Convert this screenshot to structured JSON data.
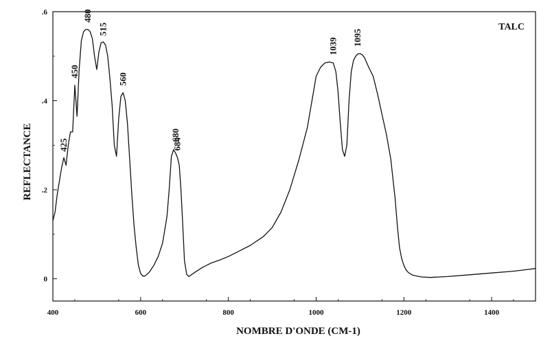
{
  "chart_data": {
    "type": "line",
    "title": "TALC",
    "xlabel": "NOMBRE D'ONDE (CM-1)",
    "ylabel": "REFLECTANCE",
    "xlim": [
      400,
      1500
    ],
    "ylim": [
      -0.05,
      0.6
    ],
    "x_ticks": [
      400,
      600,
      800,
      1000,
      1200,
      1400
    ],
    "x_tick_labels": [
      "400",
      "600",
      "800",
      "1000",
      "1200",
      "1400"
    ],
    "y_ticks": [
      0,
      0.2,
      0.4,
      0.6
    ],
    "y_tick_labels": [
      "0",
      ".2",
      ".4",
      ".6"
    ],
    "grid": false,
    "legend": "none",
    "line_color": "#111111",
    "peak_labels": [
      {
        "x": 425,
        "y": 0.27,
        "text": "425"
      },
      {
        "x": 450,
        "y": 0.435,
        "text": "450"
      },
      {
        "x": 480,
        "y": 0.56,
        "text": "480"
      },
      {
        "x": 515,
        "y": 0.53,
        "text": "515"
      },
      {
        "x": 560,
        "y": 0.418,
        "text": "560"
      },
      {
        "x": 680,
        "y": 0.292,
        "text": "680"
      },
      {
        "x": 684,
        "y": 0.272,
        "text": "684"
      },
      {
        "x": 1039,
        "y": 0.487,
        "text": "1039"
      },
      {
        "x": 1095,
        "y": 0.506,
        "text": "1095"
      }
    ],
    "series": [
      {
        "x": [
          400,
          405,
          410,
          415,
          420,
          425,
          430,
          435,
          440,
          445,
          450,
          455,
          460,
          465,
          470,
          475,
          480,
          485,
          490,
          495,
          500,
          505,
          510,
          515,
          520,
          525,
          530,
          535,
          540,
          545,
          550,
          555,
          560,
          565,
          570,
          575,
          580,
          585,
          590,
          595,
          600,
          605,
          610,
          620,
          630,
          640,
          650,
          660,
          665,
          670,
          675,
          680,
          684,
          688,
          692,
          696,
          700,
          705,
          710,
          720,
          740,
          760,
          780,
          800,
          820,
          850,
          880,
          900,
          920,
          940,
          960,
          980,
          1000,
          1010,
          1020,
          1030,
          1039,
          1045,
          1050,
          1055,
          1060,
          1065,
          1070,
          1075,
          1080,
          1085,
          1090,
          1095,
          1100,
          1105,
          1110,
          1120,
          1130,
          1140,
          1150,
          1160,
          1170,
          1180,
          1185,
          1190,
          1195,
          1200,
          1205,
          1210,
          1220,
          1240,
          1260,
          1280,
          1300,
          1350,
          1400,
          1450,
          1500
        ],
        "y": [
          0.13,
          0.15,
          0.19,
          0.22,
          0.25,
          0.272,
          0.255,
          0.3,
          0.33,
          0.33,
          0.435,
          0.365,
          0.47,
          0.535,
          0.555,
          0.56,
          0.56,
          0.555,
          0.54,
          0.5,
          0.47,
          0.51,
          0.53,
          0.532,
          0.525,
          0.5,
          0.45,
          0.39,
          0.3,
          0.275,
          0.36,
          0.41,
          0.418,
          0.4,
          0.35,
          0.27,
          0.19,
          0.12,
          0.07,
          0.03,
          0.012,
          0.006,
          0.006,
          0.015,
          0.03,
          0.05,
          0.08,
          0.14,
          0.2,
          0.275,
          0.29,
          0.282,
          0.272,
          0.255,
          0.2,
          0.12,
          0.04,
          0.01,
          0.005,
          0.012,
          0.025,
          0.035,
          0.042,
          0.05,
          0.06,
          0.075,
          0.095,
          0.115,
          0.15,
          0.2,
          0.265,
          0.34,
          0.455,
          0.475,
          0.485,
          0.487,
          0.485,
          0.465,
          0.42,
          0.35,
          0.29,
          0.275,
          0.3,
          0.4,
          0.465,
          0.49,
          0.5,
          0.505,
          0.506,
          0.503,
          0.497,
          0.475,
          0.455,
          0.415,
          0.37,
          0.325,
          0.27,
          0.18,
          0.12,
          0.07,
          0.045,
          0.03,
          0.02,
          0.014,
          0.008,
          0.004,
          0.003,
          0.004,
          0.005,
          0.009,
          0.013,
          0.017,
          0.023
        ]
      }
    ]
  }
}
